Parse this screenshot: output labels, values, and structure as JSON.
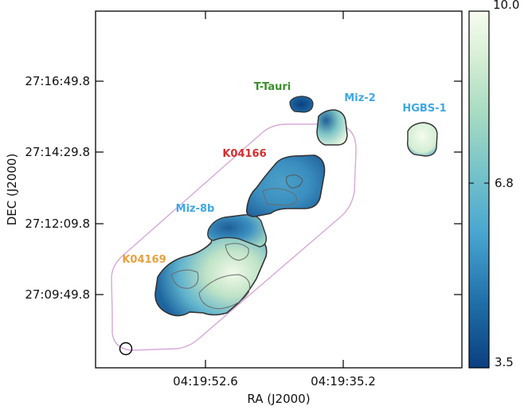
{
  "chart_data": {
    "type": "heatmap",
    "title": "",
    "xlabel": "RA (J2000)",
    "ylabel": "DEC (J2000)",
    "x_ticks": [
      "04:19:52.6",
      "04:19:35.2"
    ],
    "y_ticks": [
      "27:16:49.8",
      "27:14:29.8",
      "27:12:09.8",
      "27:09:49.8"
    ],
    "colorbar": {
      "min": 3.5,
      "max": 10.0,
      "ticks": [
        "10.0",
        "6.8",
        "3.5"
      ],
      "colormap": "white-green-blue",
      "colors": [
        "#f7fcf0",
        "#ccebc5",
        "#7bccc4",
        "#4eb3d3",
        "#2b8cbe",
        "#0868ac",
        "#084081"
      ]
    },
    "annotations": [
      {
        "text": "T-Tauri",
        "color": "#3a8f2c"
      },
      {
        "text": "Miz-2",
        "color": "#3ea8e6"
      },
      {
        "text": "HGBS-1",
        "color": "#3ea8e6"
      },
      {
        "text": "K04166",
        "color": "#d42d2d"
      },
      {
        "text": "Miz-8b",
        "color": "#3ea8e6"
      },
      {
        "text": "K04169",
        "color": "#e8a040"
      }
    ],
    "coverage_contour_color": "#d8a8d8",
    "beam": "circle",
    "grid": false
  }
}
